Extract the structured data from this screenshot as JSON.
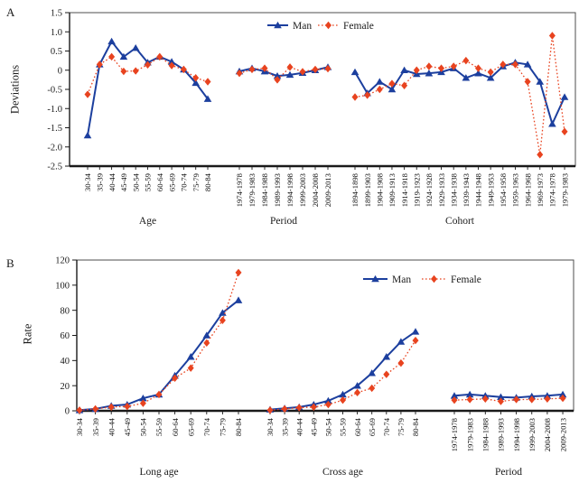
{
  "panels": [
    {
      "label": "A",
      "ylabel": "Deviations"
    },
    {
      "label": "B",
      "ylabel": "Rate"
    }
  ],
  "colors": {
    "man": "#1c3f9e",
    "female": "#e8431f"
  },
  "series_styles": [
    {
      "name": "Man",
      "color": "#1c3f9e",
      "marker": "triangle",
      "line": "solid"
    },
    {
      "name": "Female",
      "color": "#e8431f",
      "marker": "diamond",
      "line": "dotted"
    }
  ],
  "chart_data": [
    {
      "type": "line",
      "panel": "A",
      "ylabel": "Deviations",
      "ylim": [
        -2.5,
        1.5
      ],
      "ytick_values": [
        1.5,
        1.0,
        0.5,
        0,
        -0.5,
        -1.0,
        -1.5,
        -2.0,
        -2.5
      ],
      "ytick_labels": [
        "1.5",
        "1.0",
        "0.5",
        "0",
        "-0.5",
        "-1.0",
        "-1.5",
        "-2.0",
        "-2.5"
      ],
      "legend": [
        "Man",
        "Female"
      ],
      "legend_position": "top",
      "grid": false,
      "groups": [
        {
          "label": "Age",
          "categories": [
            "30-34",
            "35-39",
            "40-44",
            "45-49",
            "50-54",
            "55-59",
            "60-64",
            "65-69",
            "70-74",
            "75-79",
            "80-84"
          ],
          "series": [
            {
              "name": "Man",
              "values": [
                -1.7,
                0.15,
                0.75,
                0.35,
                0.58,
                0.2,
                0.35,
                0.22,
                0.02,
                -0.33,
                -0.75
              ]
            },
            {
              "name": "Female",
              "values": [
                -0.63,
                0.15,
                0.35,
                -0.03,
                -0.02,
                0.14,
                0.35,
                0.12,
                0.02,
                -0.2,
                -0.3
              ]
            }
          ]
        },
        {
          "label": "Period",
          "categories": [
            "1974-1978",
            "1979-1983",
            "1984-1988",
            "1989-1993",
            "1994-1998",
            "1999-2003",
            "2004-2008",
            "2009-2013"
          ],
          "series": [
            {
              "name": "Man",
              "values": [
                -0.03,
                0.05,
                -0.03,
                -0.15,
                -0.12,
                -0.07,
                0.0,
                0.08
              ]
            },
            {
              "name": "Female",
              "values": [
                -0.08,
                0.02,
                0.05,
                -0.25,
                0.08,
                -0.04,
                0.02,
                0.04
              ]
            }
          ]
        },
        {
          "label": "Cohort",
          "categories": [
            "1894-1898",
            "1899-1903",
            "1904-1908",
            "1909-1913",
            "1914-1918",
            "1919-1923",
            "1924-1928",
            "1929-1933",
            "1934-1938",
            "1939-1943",
            "1944-1948",
            "1949-1953",
            "1954-1958",
            "1959-1963",
            "1964-1968",
            "1969-1973",
            "1974-1978",
            "1979-1983"
          ],
          "series": [
            {
              "name": "Man",
              "values": [
                -0.05,
                -0.6,
                -0.3,
                -0.5,
                0.0,
                -0.1,
                -0.08,
                -0.05,
                0.05,
                -0.2,
                -0.08,
                -0.2,
                0.1,
                0.2,
                0.15,
                -0.3,
                -1.4,
                -0.7
              ]
            },
            {
              "name": "Female",
              "values": [
                -0.7,
                -0.65,
                -0.5,
                -0.35,
                -0.4,
                0.0,
                0.1,
                0.05,
                0.1,
                0.25,
                0.05,
                -0.05,
                0.15,
                0.15,
                -0.3,
                -2.2,
                0.9,
                -1.6
              ]
            }
          ]
        }
      ]
    },
    {
      "type": "line",
      "panel": "B",
      "ylabel": "Rate",
      "ylim": [
        0,
        120
      ],
      "ytick_values": [
        120,
        100,
        80,
        60,
        40,
        20,
        0
      ],
      "ytick_labels": [
        "120",
        "100",
        "80",
        "60",
        "40",
        "20",
        "0"
      ],
      "legend": [
        "Man",
        "Female"
      ],
      "legend_position": "top",
      "grid": false,
      "groups": [
        {
          "label": "Long age",
          "categories": [
            "30-34",
            "35-39",
            "40-44",
            "45-49",
            "50-54",
            "55-59",
            "60-64",
            "65-69",
            "70-74",
            "75-79",
            "80-84"
          ],
          "series": [
            {
              "name": "Man",
              "values": [
                0.5,
                1.5,
                4,
                5,
                10,
                13,
                28,
                43,
                60,
                78,
                88
              ]
            },
            {
              "name": "Female",
              "values": [
                0.5,
                1.5,
                3,
                3.5,
                6,
                13,
                26,
                34,
                54,
                72,
                110
              ]
            }
          ]
        },
        {
          "label": "Cross age",
          "categories": [
            "30-34",
            "35-39",
            "40-44",
            "45-49",
            "50-54",
            "55-59",
            "60-64",
            "65-69",
            "70-74",
            "75-79",
            "80-84"
          ],
          "series": [
            {
              "name": "Man",
              "values": [
                1,
                2,
                3,
                5,
                8,
                13,
                20,
                30,
                43,
                55,
                63
              ]
            },
            {
              "name": "Female",
              "values": [
                0.5,
                1.5,
                2.5,
                3,
                5,
                8.5,
                14.5,
                18,
                29,
                38,
                56
              ]
            }
          ]
        },
        {
          "label": "Period",
          "categories": [
            "1974-1978",
            "1979-1983",
            "1984-1988",
            "1989-1993",
            "1994-1998",
            "1999-2003",
            "2004-2008",
            "2009-2013"
          ],
          "series": [
            {
              "name": "Man",
              "values": [
                12,
                13,
                12,
                11,
                10.5,
                11.5,
                12,
                13
              ]
            },
            {
              "name": "Female",
              "values": [
                8.5,
                9,
                9.5,
                7.5,
                9,
                9,
                9.5,
                10
              ]
            }
          ]
        }
      ]
    }
  ]
}
